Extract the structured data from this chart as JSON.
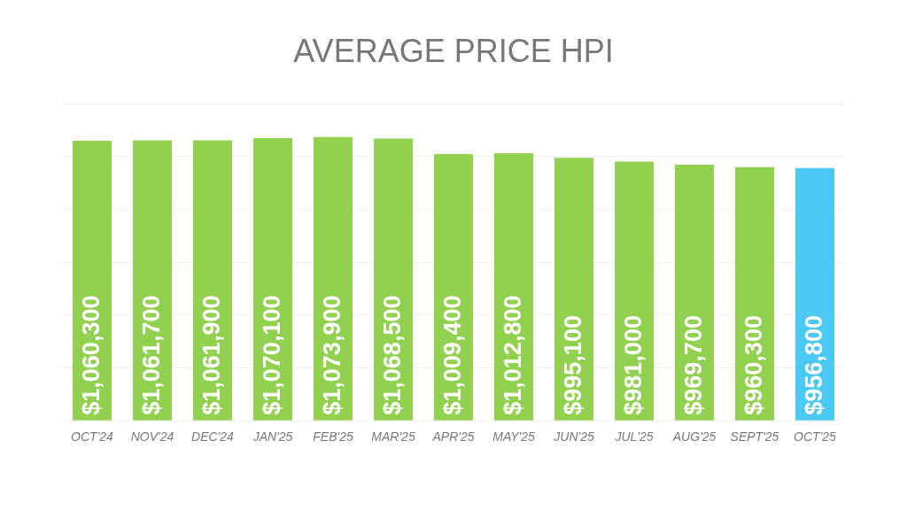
{
  "chart_data": {
    "type": "bar",
    "title": "AVERAGE PRICE HPI",
    "categories": [
      "OCT'24",
      "NOV'24",
      "DEC'24",
      "JAN'25",
      "FEB'25",
      "MAR'25",
      "APR'25",
      "MAY'25",
      "JUN'25",
      "JUL'25",
      "AUG'25",
      "SEPT'25",
      "OCT'25"
    ],
    "values": [
      1060300,
      1061700,
      1061900,
      1070100,
      1073900,
      1068500,
      1009400,
      1012800,
      995100,
      981000,
      969700,
      960300,
      956800
    ],
    "colors": [
      "#92d050",
      "#92d050",
      "#92d050",
      "#92d050",
      "#92d050",
      "#92d050",
      "#92d050",
      "#92d050",
      "#92d050",
      "#92d050",
      "#92d050",
      "#92d050",
      "#4cc8f4"
    ],
    "value_labels": [
      "$1,060,300",
      "$1,061,700",
      "$1,061,900",
      "$1,070,100",
      "$1,073,900",
      "$1,068,500",
      "$1,009,400",
      "$1,012,800",
      "$995,100",
      "$981,000",
      "$969,700",
      "$960,300",
      "$956,800"
    ],
    "grid": "y",
    "tick_labels": "x",
    "legend": false
  }
}
